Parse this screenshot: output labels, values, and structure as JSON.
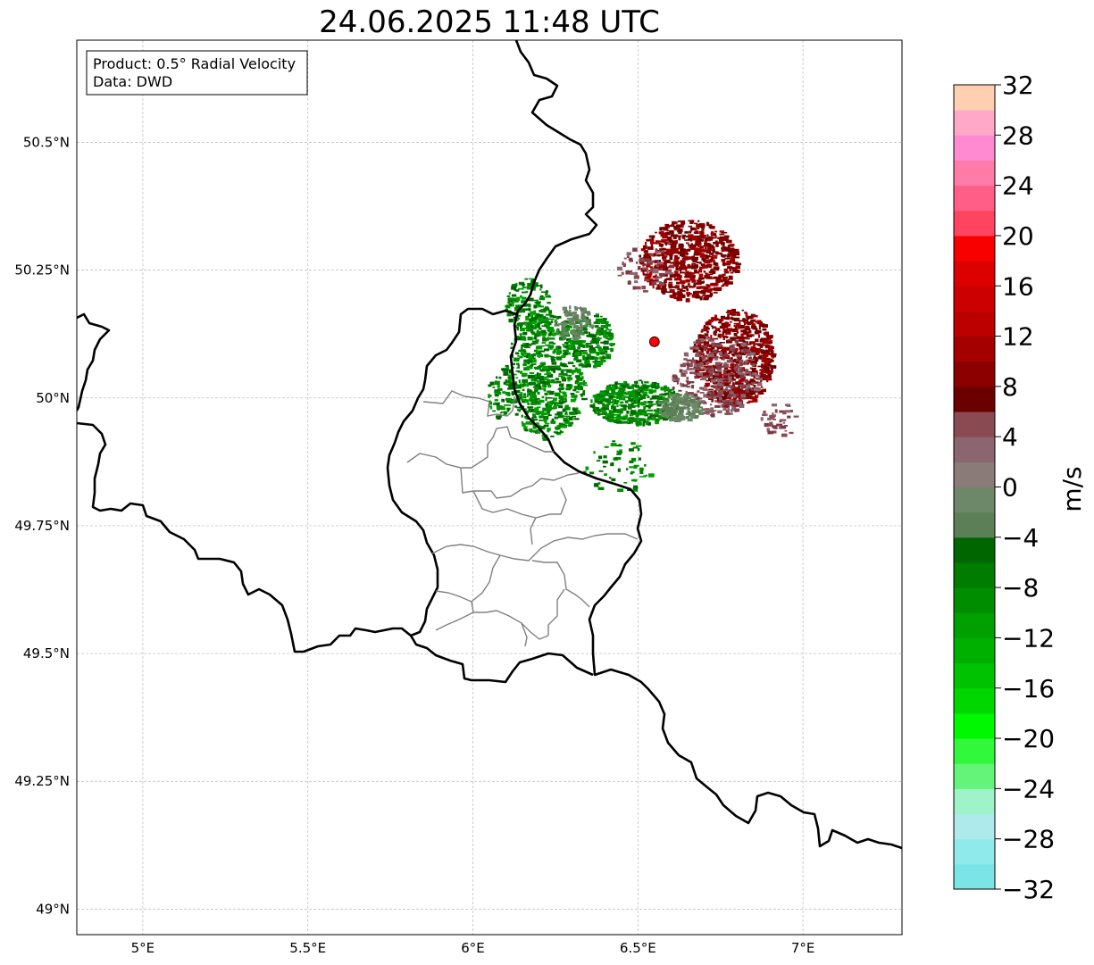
{
  "title": "24.06.2025 11:48 UTC",
  "info_box": {
    "product": "Product: 0.5° Radial Velocity",
    "source": "Data: DWD"
  },
  "map": {
    "lon_range": [
      4.8,
      7.3
    ],
    "lat_range": [
      48.95,
      50.7
    ],
    "lon_ticks": [
      {
        "value": 5.0,
        "label": "5°E"
      },
      {
        "value": 5.5,
        "label": "5.5°E"
      },
      {
        "value": 6.0,
        "label": "6°E"
      },
      {
        "value": 6.5,
        "label": "6.5°E"
      },
      {
        "value": 7.0,
        "label": "7°E"
      }
    ],
    "lat_ticks": [
      {
        "value": 49.0,
        "label": "49°N"
      },
      {
        "value": 49.25,
        "label": "49.25°N"
      },
      {
        "value": 49.5,
        "label": "49.5°N"
      },
      {
        "value": 49.75,
        "label": "49.75°N"
      },
      {
        "value": 50.0,
        "label": "50°N"
      },
      {
        "value": 50.25,
        "label": "50.25°N"
      },
      {
        "value": 50.5,
        "label": "50.5°N"
      }
    ],
    "grid": true,
    "radar_site": {
      "lon": 6.55,
      "lat": 50.11,
      "color": "#ff0000"
    }
  },
  "colorbar": {
    "label": "m/s",
    "min": -32,
    "max": 32,
    "ticks": [
      {
        "value": 32,
        "label": "32"
      },
      {
        "value": 28,
        "label": "28"
      },
      {
        "value": 24,
        "label": "24"
      },
      {
        "value": 20,
        "label": "20"
      },
      {
        "value": 16,
        "label": "16"
      },
      {
        "value": 12,
        "label": "12"
      },
      {
        "value": 8,
        "label": "8"
      },
      {
        "value": 4,
        "label": "4"
      },
      {
        "value": 0,
        "label": "0"
      },
      {
        "value": -4,
        "label": "−4"
      },
      {
        "value": -8,
        "label": "−8"
      },
      {
        "value": -12,
        "label": "−12"
      },
      {
        "value": -16,
        "label": "−16"
      },
      {
        "value": -20,
        "label": "−20"
      },
      {
        "value": -24,
        "label": "−24"
      },
      {
        "value": -28,
        "label": "−28"
      },
      {
        "value": -32,
        "label": "−32"
      }
    ],
    "colors_bottom_to_top": [
      "#7ae4e6",
      "#8feaec",
      "#aee9ec",
      "#9ef3c8",
      "#64f47a",
      "#32f83c",
      "#00f800",
      "#00d600",
      "#00c200",
      "#00b000",
      "#00a000",
      "#008e00",
      "#007c00",
      "#006600",
      "#5d7f57",
      "#6d8869",
      "#8a7a78",
      "#8b6570",
      "#8a4a52",
      "#6a0000",
      "#8c0000",
      "#a40000",
      "#bc0000",
      "#cd0000",
      "#dc0000",
      "#f80000",
      "#ff4460",
      "#ff5f86",
      "#ff7ca8",
      "#ff8ad2",
      "#ffa8c8",
      "#ffcfb2"
    ]
  }
}
